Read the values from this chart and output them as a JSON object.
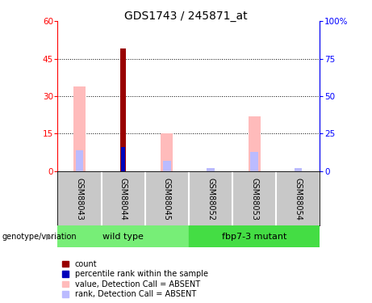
{
  "title": "GDS1743 / 245871_at",
  "samples": [
    "GSM88043",
    "GSM88044",
    "GSM88045",
    "GSM88052",
    "GSM88053",
    "GSM88054"
  ],
  "group1_name": "wild type",
  "group2_name": "fbp7-3 mutant",
  "group1_indices": [
    0,
    1,
    2
  ],
  "group2_indices": [
    3,
    4,
    5
  ],
  "count_values": [
    0,
    49,
    0,
    0,
    0,
    0
  ],
  "percentile_values": [
    0,
    16,
    0,
    0,
    0,
    0
  ],
  "value_absent": [
    34,
    0,
    15,
    0,
    22,
    0
  ],
  "rank_absent": [
    14,
    0,
    7,
    2,
    13,
    2
  ],
  "ylim_left": [
    0,
    60
  ],
  "ylim_right": [
    0,
    100
  ],
  "yticks_left": [
    0,
    15,
    30,
    45,
    60
  ],
  "yticks_right": [
    0,
    25,
    50,
    75,
    100
  ],
  "ytick_labels_right": [
    "0",
    "25",
    "50",
    "75",
    "100%"
  ],
  "count_color": "#990000",
  "percentile_color": "#0000bb",
  "value_absent_color": "#ffbbbb",
  "rank_absent_color": "#bbbbff",
  "bg_samples": "#c8c8c8",
  "bg_group": "#77ee77",
  "legend_labels": [
    "count",
    "percentile rank within the sample",
    "value, Detection Call = ABSENT",
    "rank, Detection Call = ABSENT"
  ],
  "legend_colors": [
    "#990000",
    "#0000bb",
    "#ffbbbb",
    "#bbbbff"
  ],
  "title_fontsize": 10,
  "tick_fontsize": 7.5,
  "sample_fontsize": 7,
  "group_fontsize": 8,
  "legend_fontsize": 7
}
